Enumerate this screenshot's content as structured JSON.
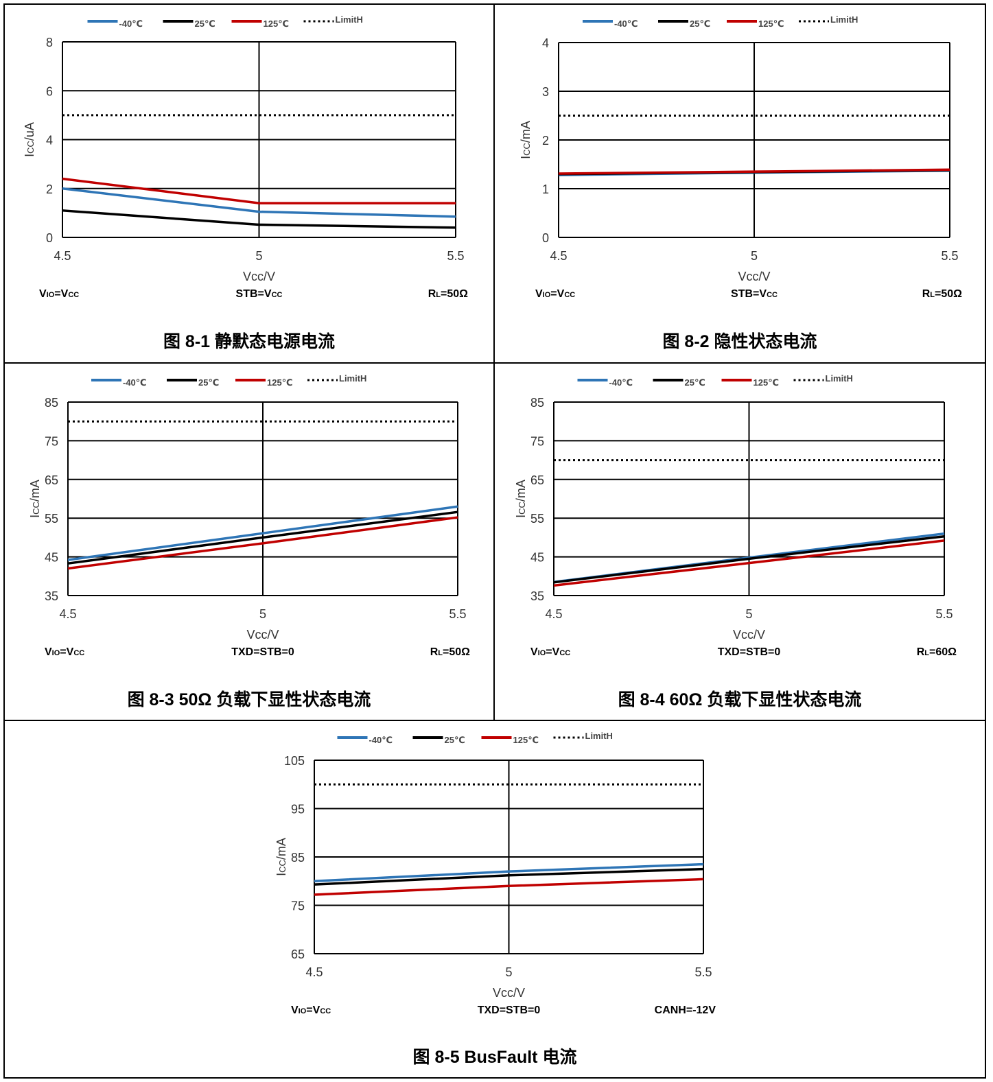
{
  "colors": {
    "m40": "#2e75b6",
    "p25": "#000000",
    "p125": "#c00000",
    "limit": "#000000"
  },
  "legend": {
    "m40": "-40℃",
    "p25": "25℃",
    "p125": "125℃",
    "limit": "LimitH"
  },
  "xlabel": "Vcc/V",
  "ylabel_prefix": "I",
  "ylabel_sub": "CC",
  "chart_data": [
    {
      "type": "line",
      "caption": "图 8-1 静默态电源电流",
      "ylabel_unit": "/uA",
      "x": [
        4.5,
        5,
        5.5
      ],
      "ylim": [
        0,
        8
      ],
      "yticks": [
        0,
        2,
        4,
        6,
        8
      ],
      "xticks": [
        "4.5",
        "5",
        "5.5"
      ],
      "series": [
        {
          "name": "-40℃",
          "values": [
            2.0,
            1.05,
            0.85
          ]
        },
        {
          "name": "25℃",
          "values": [
            1.1,
            0.52,
            0.4
          ]
        },
        {
          "name": "125℃",
          "values": [
            2.4,
            1.4,
            1.4
          ]
        },
        {
          "name": "LimitH",
          "values": [
            5,
            5,
            5
          ]
        }
      ],
      "notes": {
        "left_main": "V",
        "left_sub": "IO",
        "left_rest": "=V",
        "left_sub2": "CC",
        "mid": "STB=V",
        "mid_sub": "CC",
        "right_main": "R",
        "right_sub": "L",
        "right_rest": "=50Ω"
      }
    },
    {
      "type": "line",
      "caption": "图 8-2 隐性状态电流",
      "ylabel_unit": "/mA",
      "x": [
        4.5,
        5,
        5.5
      ],
      "ylim": [
        0,
        4
      ],
      "yticks": [
        0,
        1,
        2,
        3,
        4
      ],
      "xticks": [
        "4.5",
        "5",
        "5.5"
      ],
      "series": [
        {
          "name": "-40℃",
          "values": [
            1.28,
            1.33,
            1.37
          ]
        },
        {
          "name": "25℃",
          "values": [
            1.3,
            1.34,
            1.38
          ]
        },
        {
          "name": "125℃",
          "values": [
            1.31,
            1.35,
            1.39
          ]
        },
        {
          "name": "LimitH",
          "values": [
            2.5,
            2.5,
            2.5
          ]
        }
      ],
      "notes": {
        "left_main": "V",
        "left_sub": "IO",
        "left_rest": "=V",
        "left_sub2": "CC",
        "mid": "STB=V",
        "mid_sub": "CC",
        "right_main": "R",
        "right_sub": "L",
        "right_rest": "=50Ω"
      }
    },
    {
      "type": "line",
      "caption": "图 8-3 50Ω 负载下显性状态电流",
      "ylabel_unit": "/mA",
      "x": [
        4.5,
        5,
        5.5
      ],
      "ylim": [
        35,
        85
      ],
      "yticks": [
        35,
        45,
        55,
        65,
        75,
        85
      ],
      "xticks": [
        "4.5",
        "5",
        "5.5"
      ],
      "series": [
        {
          "name": "-40℃",
          "values": [
            44.2,
            51.1,
            58.0
          ]
        },
        {
          "name": "25℃",
          "values": [
            43.3,
            50.0,
            56.6
          ]
        },
        {
          "name": "125℃",
          "values": [
            42.0,
            48.5,
            55.2
          ]
        },
        {
          "name": "LimitH",
          "values": [
            80,
            80,
            80
          ]
        }
      ],
      "notes": {
        "left_main": "V",
        "left_sub": "IO",
        "left_rest": "=V",
        "left_sub2": "CC",
        "mid": "TXD=STB=0",
        "mid_sub": "",
        "right_main": "R",
        "right_sub": "L",
        "right_rest": "=50Ω"
      }
    },
    {
      "type": "line",
      "caption": "图 8-4 60Ω 负载下显性状态电流",
      "ylabel_unit": "/mA",
      "x": [
        4.5,
        5,
        5.5
      ],
      "ylim": [
        35,
        85
      ],
      "yticks": [
        35,
        45,
        55,
        65,
        75,
        85
      ],
      "xticks": [
        "4.5",
        "5",
        "5.5"
      ],
      "series": [
        {
          "name": "-40℃",
          "values": [
            38.5,
            44.8,
            51.0
          ]
        },
        {
          "name": "25℃",
          "values": [
            38.4,
            44.5,
            50.3
          ]
        },
        {
          "name": "125℃",
          "values": [
            37.6,
            43.4,
            49.2
          ]
        },
        {
          "name": "LimitH",
          "values": [
            70,
            70,
            70
          ]
        }
      ],
      "notes": {
        "left_main": "V",
        "left_sub": "IO",
        "left_rest": "=V",
        "left_sub2": "CC",
        "mid": "TXD=STB=0",
        "mid_sub": "",
        "right_main": "R",
        "right_sub": "L",
        "right_rest": "=60Ω"
      }
    },
    {
      "type": "line",
      "caption": "图 8-5 BusFault 电流",
      "ylabel_unit": "/mA",
      "x": [
        4.5,
        5,
        5.5
      ],
      "ylim": [
        65,
        105
      ],
      "yticks": [
        65,
        75,
        85,
        95,
        105
      ],
      "xticks": [
        "4.5",
        "5",
        "5.5"
      ],
      "series": [
        {
          "name": "-40℃",
          "values": [
            80.0,
            82.0,
            83.5
          ]
        },
        {
          "name": "25℃",
          "values": [
            79.3,
            81.2,
            82.5
          ]
        },
        {
          "name": "125℃",
          "values": [
            77.2,
            79.0,
            80.4
          ]
        },
        {
          "name": "LimitH",
          "values": [
            100,
            100,
            100
          ]
        }
      ],
      "notes": {
        "left_main": "V",
        "left_sub": "IO",
        "left_rest": "=V",
        "left_sub2": "CC",
        "mid": "TXD=STB=0",
        "mid_sub": "",
        "right_main": "CANH=-12V",
        "right_sub": "",
        "right_rest": ""
      }
    }
  ]
}
